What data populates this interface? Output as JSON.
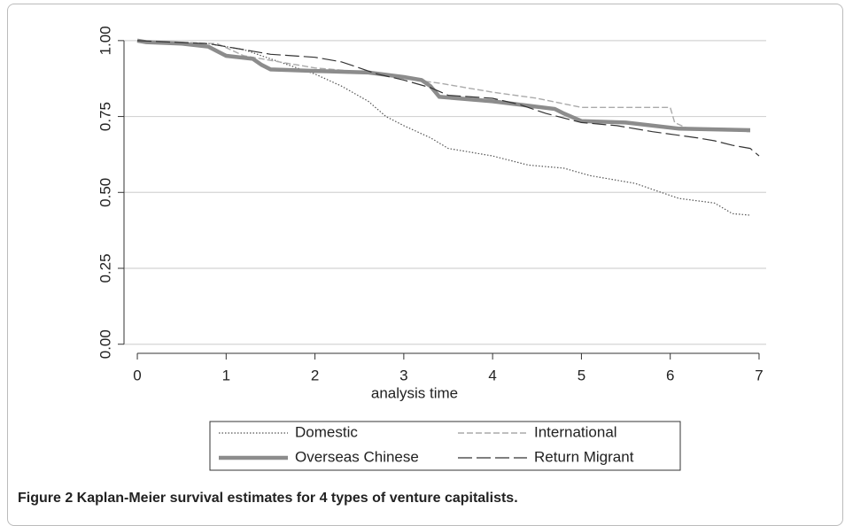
{
  "chart_data": {
    "type": "line",
    "x_label": "analysis time",
    "xlim": [
      -0.15,
      7.08
    ],
    "xticks": [
      0,
      1,
      2,
      3,
      4,
      5,
      6,
      7
    ],
    "ylim": [
      -0.03,
      1.02
    ],
    "yticks": [
      {
        "value": 0,
        "label": "0.00"
      },
      {
        "value": 0.25,
        "label": "0.25"
      },
      {
        "value": 0.5,
        "label": "0.50"
      },
      {
        "value": 0.75,
        "label": "0.75"
      },
      {
        "value": 1,
        "label": "1.00"
      }
    ],
    "grid": true,
    "legend": "bottom",
    "series": [
      {
        "name": "Domestic",
        "color": "#555555",
        "x": [
          0,
          0.8,
          1.2,
          1.6,
          2.0,
          2.3,
          2.6,
          2.8,
          3.0,
          3.3,
          3.5,
          4.0,
          4.4,
          4.8,
          5.1,
          5.6,
          5.9,
          6.1,
          6.5,
          6.7,
          6.9
        ],
        "values": [
          1.0,
          0.99,
          0.97,
          0.93,
          0.89,
          0.85,
          0.8,
          0.75,
          0.72,
          0.68,
          0.645,
          0.62,
          0.59,
          0.58,
          0.555,
          0.53,
          0.5,
          0.48,
          0.465,
          0.43,
          0.425
        ]
      },
      {
        "name": "International",
        "color": "#aaaaaa",
        "x": [
          0,
          0.9,
          1.2,
          1.6,
          2.0,
          2.8,
          3.0,
          3.4,
          3.6,
          4.0,
          4.5,
          5.0,
          6.0,
          6.05,
          6.2,
          6.9
        ],
        "values": [
          1.0,
          0.99,
          0.95,
          0.93,
          0.91,
          0.89,
          0.875,
          0.86,
          0.85,
          0.83,
          0.81,
          0.78,
          0.78,
          0.73,
          0.71,
          0.7
        ]
      },
      {
        "name": "Overseas Chinese",
        "color": "#8c8c8c",
        "x": [
          0,
          0.1,
          0.5,
          0.8,
          1.0,
          1.3,
          1.4,
          1.5,
          2.0,
          2.6,
          3.0,
          3.2,
          3.3,
          3.4,
          4.0,
          4.7,
          4.8,
          5.0,
          5.5,
          6.1,
          6.9
        ],
        "values": [
          1.0,
          0.995,
          0.99,
          0.98,
          0.95,
          0.94,
          0.92,
          0.905,
          0.9,
          0.895,
          0.88,
          0.87,
          0.85,
          0.815,
          0.8,
          0.775,
          0.76,
          0.735,
          0.73,
          0.71,
          0.705
        ]
      },
      {
        "name": "Return Migrant",
        "color": "#333333",
        "x": [
          0,
          0.8,
          1.1,
          1.5,
          2.0,
          2.3,
          2.5,
          2.7,
          3.0,
          3.3,
          3.5,
          4.0,
          4.3,
          4.6,
          5.0,
          5.4,
          5.8,
          6.3,
          6.5,
          6.7,
          6.9,
          7.0
        ],
        "values": [
          1.0,
          0.99,
          0.975,
          0.955,
          0.945,
          0.93,
          0.91,
          0.89,
          0.87,
          0.845,
          0.82,
          0.81,
          0.79,
          0.76,
          0.73,
          0.72,
          0.7,
          0.68,
          0.67,
          0.655,
          0.645,
          0.62
        ]
      }
    ]
  },
  "caption": "Figure 2 Kaplan-Meier survival estimates for 4 types of venture capitalists."
}
